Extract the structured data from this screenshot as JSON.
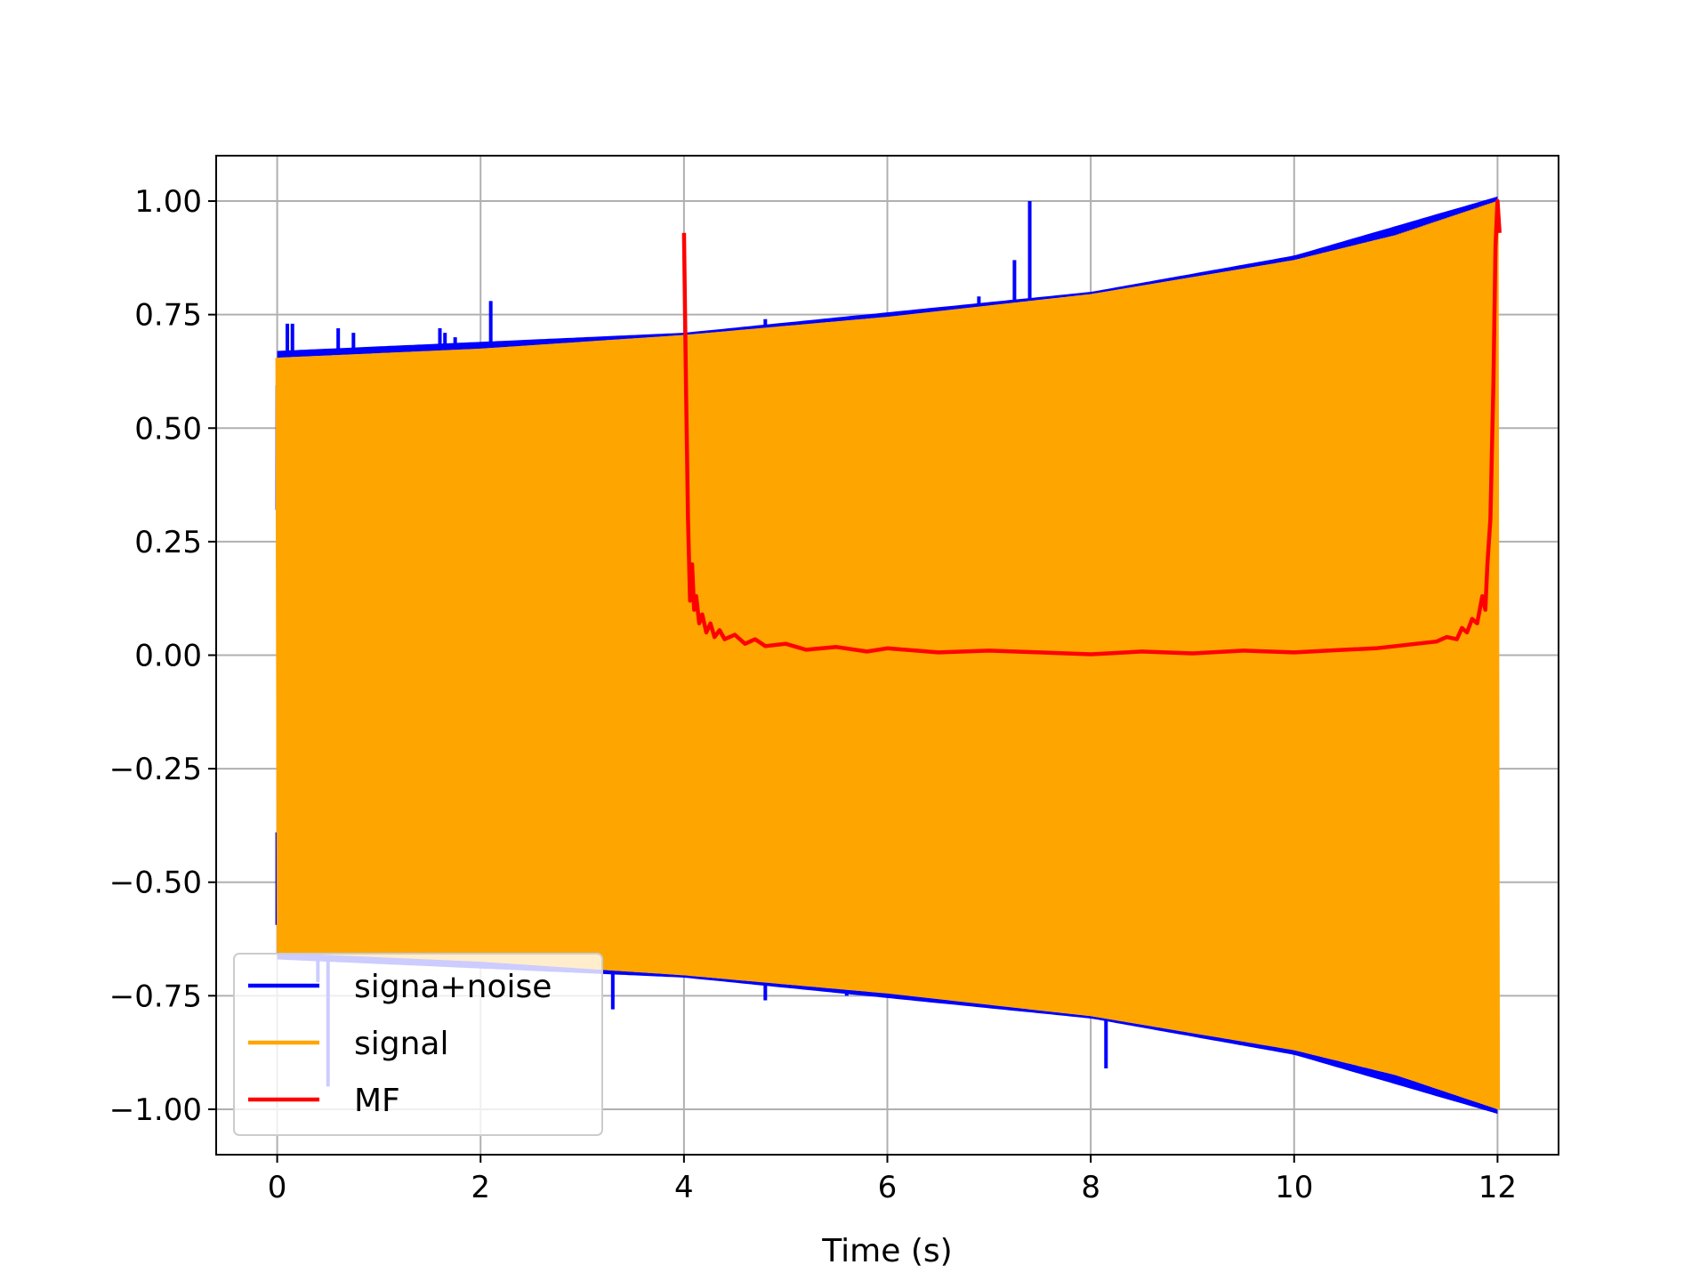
{
  "chart_data": {
    "type": "line",
    "title": "",
    "xlabel": "Time (s)",
    "ylabel": "",
    "xlim": [
      -0.6,
      12.6
    ],
    "ylim": [
      -1.1,
      1.1
    ],
    "grid": true,
    "legend_position": "lower-left",
    "x_ticks": [
      0,
      2,
      4,
      6,
      8,
      10,
      12
    ],
    "x_tick_labels": [
      "0",
      "2",
      "4",
      "6",
      "8",
      "10",
      "12"
    ],
    "y_ticks": [
      1.0,
      0.75,
      0.5,
      0.25,
      0.0,
      -0.25,
      -0.5,
      -0.75,
      -1.0
    ],
    "y_tick_labels": [
      "1.00",
      "0.75",
      "0.50",
      "0.25",
      "0.00",
      "−0.25",
      "−0.50",
      "−0.75",
      "−1.00"
    ],
    "series": [
      {
        "name": "signa+noise",
        "color": "#0000ff",
        "envelope_upper": [
          [
            0,
            0.66
          ],
          [
            4,
            0.7
          ],
          [
            8,
            0.79
          ],
          [
            10,
            0.87
          ],
          [
            12,
            1.0
          ]
        ],
        "envelope_lower": [
          [
            0,
            -0.66
          ],
          [
            4,
            -0.7
          ],
          [
            8,
            -0.79
          ],
          [
            10,
            -0.87
          ],
          [
            12,
            -1.0
          ]
        ],
        "spikes": [
          [
            0.0,
            0.32
          ],
          [
            0.0,
            -0.39
          ],
          [
            0.1,
            0.73
          ],
          [
            0.15,
            0.73
          ],
          [
            0.4,
            -0.72
          ],
          [
            0.5,
            -0.95
          ],
          [
            0.6,
            0.72
          ],
          [
            0.75,
            0.71
          ],
          [
            1.35,
            0.68
          ],
          [
            1.6,
            0.72
          ],
          [
            1.65,
            0.71
          ],
          [
            1.75,
            0.7
          ],
          [
            2.1,
            0.78
          ],
          [
            3.3,
            -0.78
          ],
          [
            4.8,
            0.74
          ],
          [
            4.8,
            -0.76
          ],
          [
            5.6,
            -0.75
          ],
          [
            5.95,
            0.75
          ],
          [
            6.9,
            0.79
          ],
          [
            7.25,
            0.87
          ],
          [
            7.4,
            1.0
          ],
          [
            8.15,
            -0.91
          ],
          [
            9.15,
            -0.83
          ],
          [
            11.95,
            -0.99
          ]
        ]
      },
      {
        "name": "signal",
        "color": "#ffa500",
        "envelope_upper": [
          [
            0,
            0.655
          ],
          [
            2,
            0.675
          ],
          [
            4,
            0.705
          ],
          [
            6,
            0.745
          ],
          [
            8,
            0.795
          ],
          [
            10,
            0.87
          ],
          [
            11,
            0.925
          ],
          [
            12,
            1.0
          ]
        ],
        "envelope_lower": [
          [
            0,
            -0.655
          ],
          [
            2,
            -0.675
          ],
          [
            4,
            -0.705
          ],
          [
            6,
            -0.745
          ],
          [
            8,
            -0.795
          ],
          [
            10,
            -0.87
          ],
          [
            11,
            -0.925
          ],
          [
            12,
            -1.0
          ]
        ]
      },
      {
        "name": "MF",
        "color": "#ff0000",
        "points": [
          [
            4.0,
            0.93
          ],
          [
            4.02,
            0.6
          ],
          [
            4.04,
            0.3
          ],
          [
            4.06,
            0.12
          ],
          [
            4.08,
            0.2
          ],
          [
            4.1,
            0.1
          ],
          [
            4.12,
            0.13
          ],
          [
            4.15,
            0.07
          ],
          [
            4.18,
            0.09
          ],
          [
            4.22,
            0.05
          ],
          [
            4.26,
            0.07
          ],
          [
            4.3,
            0.04
          ],
          [
            4.35,
            0.055
          ],
          [
            4.4,
            0.035
          ],
          [
            4.5,
            0.045
          ],
          [
            4.6,
            0.025
          ],
          [
            4.7,
            0.035
          ],
          [
            4.8,
            0.02
          ],
          [
            5.0,
            0.025
          ],
          [
            5.2,
            0.012
          ],
          [
            5.5,
            0.018
          ],
          [
            5.8,
            0.008
          ],
          [
            6.0,
            0.015
          ],
          [
            6.5,
            0.006
          ],
          [
            7.0,
            0.01
          ],
          [
            7.5,
            0.006
          ],
          [
            8.0,
            0.002
          ],
          [
            8.5,
            0.008
          ],
          [
            9.0,
            0.004
          ],
          [
            9.5,
            0.01
          ],
          [
            10.0,
            0.006
          ],
          [
            10.5,
            0.012
          ],
          [
            10.8,
            0.015
          ],
          [
            11.0,
            0.02
          ],
          [
            11.2,
            0.025
          ],
          [
            11.4,
            0.03
          ],
          [
            11.5,
            0.04
          ],
          [
            11.6,
            0.035
          ],
          [
            11.65,
            0.06
          ],
          [
            11.7,
            0.05
          ],
          [
            11.75,
            0.08
          ],
          [
            11.8,
            0.07
          ],
          [
            11.85,
            0.13
          ],
          [
            11.88,
            0.1
          ],
          [
            11.9,
            0.2
          ],
          [
            11.93,
            0.3
          ],
          [
            11.96,
            0.6
          ],
          [
            11.98,
            0.9
          ],
          [
            12.0,
            1.0
          ],
          [
            12.02,
            0.93
          ]
        ]
      }
    ]
  }
}
